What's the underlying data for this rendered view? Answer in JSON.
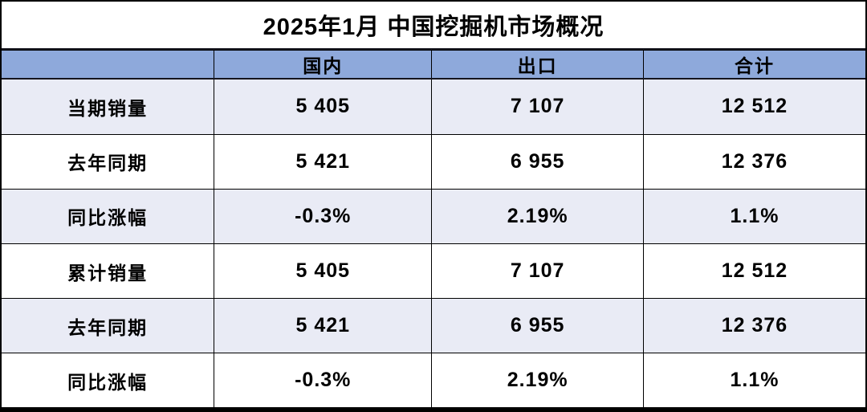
{
  "title": "2025年1月 中国挖掘机市场概况",
  "colors": {
    "header_bg": "#8EA9DB",
    "band_row_bg": "#E9EBF5",
    "plain_row_bg": "#FFFFFF",
    "border": "#000000",
    "text": "#000000"
  },
  "table": {
    "columns": [
      "",
      "国内",
      "出口",
      "合计"
    ],
    "rows": [
      {
        "label": "当期销量",
        "values": [
          "5 405",
          "7 107",
          "12 512"
        ]
      },
      {
        "label": "去年同期",
        "values": [
          "5 421",
          "6 955",
          "12 376"
        ]
      },
      {
        "label": "同比涨幅",
        "values": [
          "-0.3%",
          "2.19%",
          "1.1%"
        ]
      },
      {
        "label": "累计销量",
        "values": [
          "5 405",
          "7 107",
          "12 512"
        ]
      },
      {
        "label": "去年同期",
        "values": [
          "5 421",
          "6 955",
          "12 376"
        ]
      },
      {
        "label": "同比涨幅",
        "values": [
          "-0.3%",
          "2.19%",
          "1.1%"
        ]
      }
    ]
  },
  "chart_data": {
    "type": "table",
    "title": "2025年1月 中国挖掘机市场概况",
    "columns": [
      "国内",
      "出口",
      "合计"
    ],
    "rows": [
      {
        "label": "当期销量",
        "国内": 5405,
        "出口": 7107,
        "合计": 12512
      },
      {
        "label": "去年同期",
        "国内": 5421,
        "出口": 6955,
        "合计": 12376
      },
      {
        "label": "同比涨幅",
        "国内": "-0.3%",
        "出口": "2.19%",
        "合计": "1.1%"
      },
      {
        "label": "累计销量",
        "国内": 5405,
        "出口": 7107,
        "合计": 12512
      },
      {
        "label": "去年同期",
        "国内": 5421,
        "出口": 6955,
        "合计": 12376
      },
      {
        "label": "同比涨幅",
        "国内": "-0.3%",
        "出口": "2.19%",
        "合计": "1.1%"
      }
    ],
    "layout_hints": {
      "banded_rows": true,
      "band_pattern": "odd rows shaded lavender starting with first data row",
      "header_fill": "#8EA9DB",
      "number_format": "space as thousands separator"
    }
  }
}
